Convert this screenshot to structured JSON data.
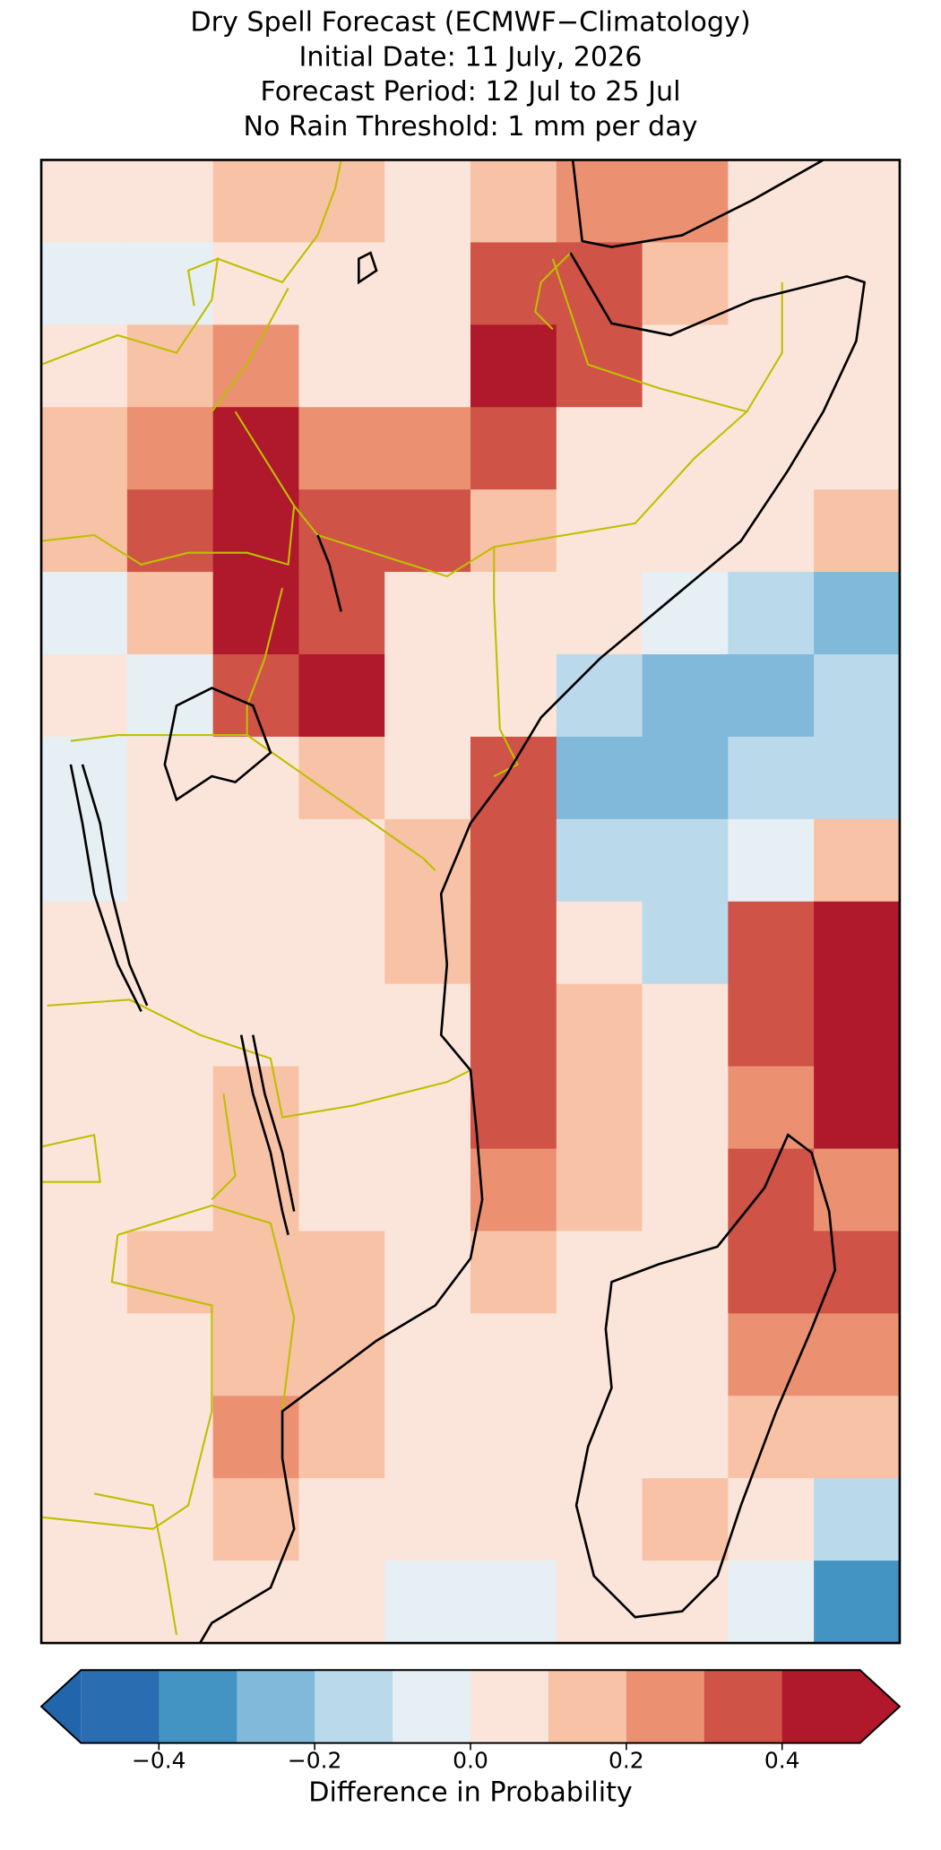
{
  "chart_data": {
    "type": "grid-map",
    "title_lines": [
      "Dry Spell Forecast (ECMWF−Climatology)",
      "Initial Date: 11 July, 2026",
      "Forecast Period: 12 Jul to 25 Jul",
      "No Rain Threshold: 1 mm per day"
    ],
    "colorbar_label": "Difference in Probability",
    "levels": [
      -0.5,
      -0.4,
      -0.3,
      -0.2,
      -0.1,
      0,
      0.1,
      0.2,
      0.3,
      0.4,
      0.5
    ],
    "colors": [
      "#2a6db0",
      "#4393c3",
      "#80b9da",
      "#bad9ea",
      "#e6eff4",
      "#fbe5da",
      "#f8c2a7",
      "#eb9172",
      "#cf5346",
      "#b0182b"
    ],
    "under_color": "#2166ac",
    "over_color": "#b2182b",
    "cbar_ticks": [
      {
        "value": -0.4,
        "label": "−0.4"
      },
      {
        "value": -0.2,
        "label": "−0.2"
      },
      {
        "value": 0,
        "label": "0.0"
      },
      0.2,
      0.4
    ],
    "grid": [
      [
        0,
        0.05,
        0.1,
        0.1,
        0.05,
        0.1,
        0.2,
        0.25,
        0.05,
        0.05
      ],
      [
        -0.1,
        -0.05,
        0.05,
        0.05,
        0.05,
        0.3,
        0.3,
        0.1,
        0.05,
        0.05
      ],
      [
        0.05,
        0.1,
        0.2,
        0.05,
        0.05,
        0.4,
        0.35,
        0.05,
        0.05,
        0.05
      ],
      [
        0.1,
        0.25,
        0.45,
        0.2,
        0.2,
        0.35,
        0.05,
        0.05,
        0.05,
        0.05
      ],
      [
        0.1,
        0.35,
        0.45,
        0.3,
        0.3,
        0.15,
        0.05,
        0.05,
        0.05,
        0.1
      ],
      [
        -0.05,
        0.1,
        0.4,
        0.35,
        0.05,
        0.05,
        0.05,
        -0.1,
        -0.2,
        -0.25
      ],
      [
        0,
        -0.05,
        0.3,
        0.45,
        0.05,
        0.05,
        -0.15,
        -0.3,
        -0.25,
        -0.2
      ],
      [
        -0.1,
        0.05,
        0.05,
        0.1,
        0.05,
        0.3,
        -0.25,
        -0.25,
        -0.2,
        -0.2
      ],
      [
        -0.05,
        0.05,
        0.05,
        0.05,
        0.1,
        0.35,
        -0.2,
        -0.2,
        -0.05,
        0.15
      ],
      [
        0.05,
        0.05,
        0.05,
        0.05,
        0.1,
        0.35,
        0.05,
        -0.2,
        0.35,
        0.4
      ],
      [
        0.05,
        0.05,
        0.05,
        0.05,
        0.05,
        0.35,
        0.1,
        0.05,
        0.3,
        0.45
      ],
      [
        0.05,
        0.05,
        0.1,
        0.05,
        0.05,
        0.35,
        0.1,
        0.05,
        0.2,
        0.45
      ],
      [
        0.05,
        0.05,
        0.1,
        0.05,
        0.05,
        0.25,
        0.1,
        0.05,
        0.3,
        0.2
      ],
      [
        0.05,
        0.1,
        0.15,
        0.1,
        0.05,
        0.1,
        0.05,
        0.05,
        0.35,
        0.3
      ],
      [
        0.05,
        0.05,
        0.15,
        0.15,
        0.05,
        0.05,
        0.05,
        0.05,
        0.2,
        0.25
      ],
      [
        0.05,
        0.05,
        0.2,
        0.1,
        0.05,
        0.05,
        0.05,
        0.05,
        0.1,
        0.15
      ],
      [
        0.05,
        0.05,
        0.1,
        0.05,
        0.05,
        0.05,
        0.05,
        0.1,
        0.05,
        -0.15
      ],
      [
        0.05,
        0.05,
        0.05,
        0.05,
        -0.05,
        -0.05,
        0.05,
        0.05,
        -0.1,
        -0.35
      ]
    ]
  }
}
